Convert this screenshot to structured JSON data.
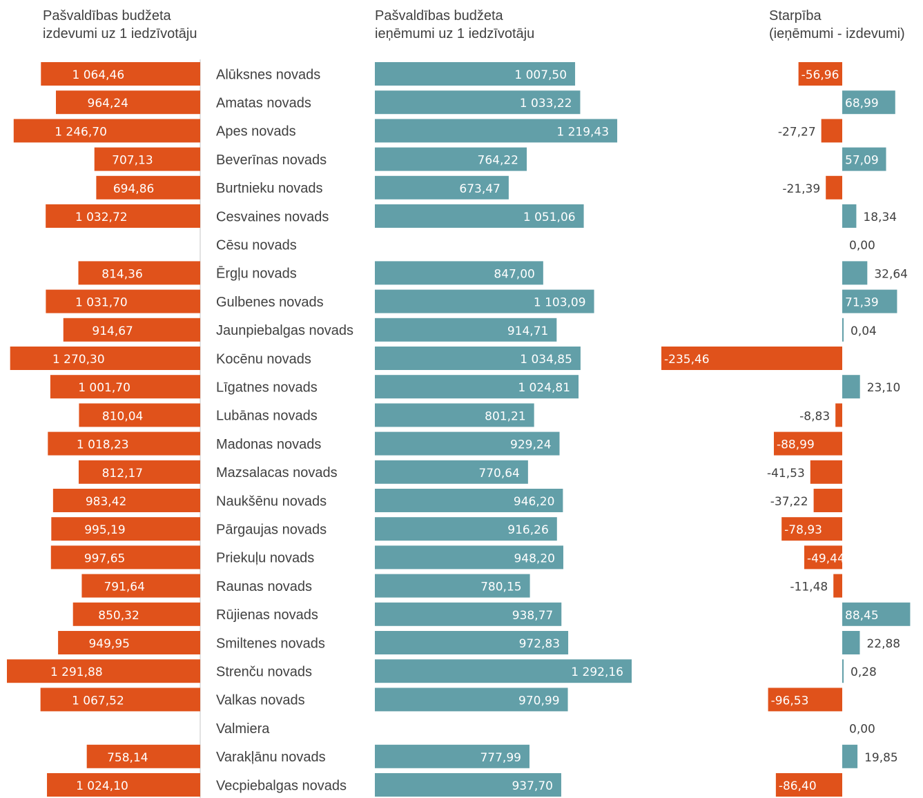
{
  "headers": {
    "left_line1": "Pašvaldības budžeta",
    "left_line2": "izdevumi uz 1 iedzīvotāju",
    "mid_line1": "Pašvaldības budžeta",
    "mid_line2": "ieņēmumi uz 1 iedzīvotāju",
    "right_line1": "Starpība",
    "right_line2": "(ieņēmumi - izdevumi)"
  },
  "colors": {
    "expenditure": "#E0521B",
    "revenue": "#629FA8",
    "positive_difference": "#629FA8",
    "negative_difference": "#E0521B",
    "text": "#404040",
    "axis": "#D9D9D9"
  },
  "chart_data": [
    {
      "type": "bar",
      "title": "Pašvaldības budžeta izdevumi uz 1 iedzīvotāju",
      "orientation": "horizontal",
      "direction": "leftward",
      "categories": [
        "Alūksnes novads",
        "Amatas novads",
        "Apes novads",
        "Beverīnas novads",
        "Burtnieku novads",
        "Cesvaines novads",
        "Cēsu novads",
        "Ērgļu novads",
        "Gulbenes novads",
        "Jaunpiebalgas novads",
        "Kocēnu novads",
        "Līgatnes novads",
        "Lubānas novads",
        "Madonas novads",
        "Mazsalacas novads",
        "Naukšēnu novads",
        "Pārgaujas novads",
        "Priekuļu novads",
        "Raunas novads",
        "Rūjienas novads",
        "Smiltenes novads",
        "Strenču novads",
        "Valkas novads",
        "Valmiera",
        "Varakļānu novads",
        "Vecpiebalgas novads"
      ],
      "values": [
        1064.46,
        964.24,
        1246.7,
        707.13,
        694.86,
        1032.72,
        null,
        814.36,
        1031.7,
        914.67,
        1270.3,
        1001.7,
        810.04,
        1018.23,
        812.17,
        983.42,
        995.19,
        997.65,
        791.64,
        850.32,
        949.95,
        1291.88,
        1067.52,
        null,
        758.14,
        1024.1
      ],
      "labels": [
        "1 064,46",
        "964,24",
        "1 246,70",
        "707,13",
        "694,86",
        "1 032,72",
        "",
        "814,36",
        "1 031,70",
        "914,67",
        "1 270,30",
        "1 001,70",
        "810,04",
        "1 018,23",
        "812,17",
        "983,42",
        "995,19",
        "997,65",
        "791,64",
        "850,32",
        "949,95",
        "1 291,88",
        "1 067,52",
        "",
        "758,14",
        "1 024,10"
      ],
      "xlim": [
        0,
        1300
      ]
    },
    {
      "type": "bar",
      "title": "Pašvaldības budžeta ieņēmumi uz 1 iedzīvotāju",
      "orientation": "horizontal",
      "categories": [
        "Alūksnes novads",
        "Amatas novads",
        "Apes novads",
        "Beverīnas novads",
        "Burtnieku novads",
        "Cesvaines novads",
        "Cēsu novads",
        "Ērgļu novads",
        "Gulbenes novads",
        "Jaunpiebalgas novads",
        "Kocēnu novads",
        "Līgatnes novads",
        "Lubānas novads",
        "Madonas novads",
        "Mazsalacas novads",
        "Naukšēnu novads",
        "Pārgaujas novads",
        "Priekuļu novads",
        "Raunas novads",
        "Rūjienas novads",
        "Smiltenes novads",
        "Strenču novads",
        "Valkas novads",
        "Valmiera",
        "Varakļānu novads",
        "Vecpiebalgas novads"
      ],
      "values": [
        1007.5,
        1033.22,
        1219.43,
        764.22,
        673.47,
        1051.06,
        null,
        847.0,
        1103.09,
        914.71,
        1034.85,
        1024.81,
        801.21,
        929.24,
        770.64,
        946.2,
        916.26,
        948.2,
        780.15,
        938.77,
        972.83,
        1292.16,
        970.99,
        null,
        777.99,
        937.7
      ],
      "labels": [
        "1 007,50",
        "1 033,22",
        "1 219,43",
        "764,22",
        "673,47",
        "1 051,06",
        "",
        "847,00",
        "1 103,09",
        "914,71",
        "1 034,85",
        "1 024,81",
        "801,21",
        "929,24",
        "770,64",
        "946,20",
        "916,26",
        "948,20",
        "780,15",
        "938,77",
        "972,83",
        "1 292,16",
        "970,99",
        "",
        "777,99",
        "937,70"
      ],
      "xlim": [
        0,
        1300
      ]
    },
    {
      "type": "bar",
      "title": "Starpība (ieņēmumi - izdevumi)",
      "orientation": "horizontal",
      "categories": [
        "Alūksnes novads",
        "Amatas novads",
        "Apes novads",
        "Beverīnas novads",
        "Burtnieku novads",
        "Cesvaines novads",
        "Cēsu novads",
        "Ērgļu novads",
        "Gulbenes novads",
        "Jaunpiebalgas novads",
        "Kocēnu novads",
        "Līgatnes novads",
        "Lubānas novads",
        "Madonas novads",
        "Mazsalacas novads",
        "Naukšēnu novads",
        "Pārgaujas novads",
        "Priekuļu novads",
        "Raunas novads",
        "Rūjienas novads",
        "Smiltenes novads",
        "Strenču novads",
        "Valkas novads",
        "Valmiera",
        "Varakļānu novads",
        "Vecpiebalgas novads"
      ],
      "values": [
        -56.96,
        68.99,
        -27.27,
        57.09,
        -21.39,
        18.34,
        0.0,
        32.64,
        71.39,
        0.04,
        -235.46,
        23.1,
        -8.83,
        -88.99,
        -41.53,
        -37.22,
        -78.93,
        -49.44,
        -11.48,
        88.45,
        22.88,
        0.28,
        -96.53,
        0.0,
        19.85,
        -86.4
      ],
      "labels": [
        "-56,96",
        "68,99",
        "-27,27",
        "57,09",
        "-21,39",
        "18,34",
        "0,00",
        "32,64",
        "71,39",
        "0,04",
        "-235,46",
        "23,10",
        "-8,83",
        "-88,99",
        "-41,53",
        "-37,22",
        "-78,93",
        "-49,44",
        "-11,48",
        "88,45",
        "22,88",
        "0,28",
        "-96,53",
        "0,00",
        "19,85",
        "-86,40"
      ],
      "xlim": [
        -240,
        100
      ]
    }
  ]
}
